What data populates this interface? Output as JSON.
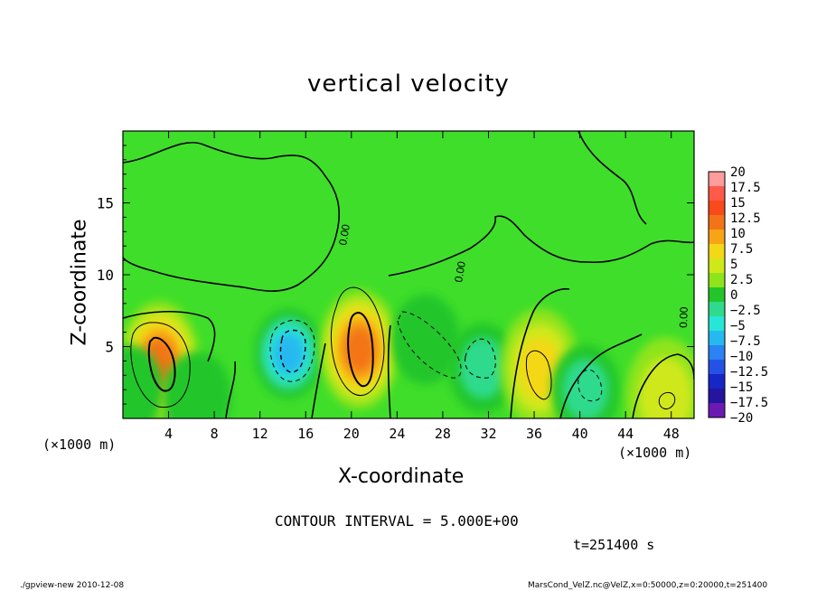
{
  "chart_data": {
    "type": "heatmap",
    "title": "vertical velocity",
    "xlabel": "X-coordinate",
    "ylabel": "Z-coordinate",
    "x_unit_left": "(×1000 m)",
    "x_unit_right": "(×1000 m)",
    "xlim": [
      0,
      50
    ],
    "ylim": [
      0,
      20
    ],
    "xticks": [
      4,
      8,
      12,
      16,
      20,
      24,
      28,
      32,
      36,
      40,
      44,
      48
    ],
    "yticks": [
      5,
      10,
      15
    ],
    "colorbar": {
      "levels": [
        20,
        17.5,
        15,
        12.5,
        10,
        7.5,
        5,
        2.5,
        0,
        -2.5,
        -5,
        -7.5,
        -10,
        -12.5,
        -15,
        -17.5,
        -20
      ],
      "labels": [
        "20",
        "17.5",
        "15",
        "12.5",
        "10",
        "7.5",
        "5",
        "2.5",
        "0",
        "−2.5",
        "−5",
        "−7.5",
        "−10",
        "−12.5",
        "−15",
        "−17.5",
        "−20"
      ],
      "colors": [
        "#ff9c9c",
        "#ff5a4a",
        "#f84a1a",
        "#f37418",
        "#f7a416",
        "#f4d817",
        "#cfe81a",
        "#8ee41a",
        "#22c62b",
        "#2fda8c",
        "#27e6d6",
        "#26b9f0",
        "#2a83f2",
        "#2552e6",
        "#1726c6",
        "#24149e",
        "#6a1ab2"
      ],
      "background_color": "#3fde2a"
    },
    "contour_labels": [
      "0.00",
      "0.00",
      "0.00"
    ],
    "cells": [
      {
        "x": 3.2,
        "z": 4.0,
        "value": 12.5
      },
      {
        "x": 14.5,
        "z": 4.5,
        "value": -10
      },
      {
        "x": 20.7,
        "z": 4.8,
        "value": 12.5
      },
      {
        "x": 31.5,
        "z": 3.5,
        "value": -5
      },
      {
        "x": 36.5,
        "z": 3.5,
        "value": 7.5
      },
      {
        "x": 40.5,
        "z": 2.0,
        "value": -5
      },
      {
        "x": 47.5,
        "z": 1.5,
        "value": 5
      },
      {
        "x": 26.5,
        "z": 5.5,
        "value": -2.5
      },
      {
        "x": 6.5,
        "z": 1.5,
        "value": -2.5
      },
      {
        "x": 0.5,
        "z": 2.0,
        "value": -2.5
      }
    ],
    "contour_interval_text": "CONTOUR INTERVAL = 5.000E+00",
    "time_text": "t=251400 s"
  },
  "footer": {
    "left": "./gpview-new  2010-12-08",
    "right": "MarsCond_VelZ.nc@VelZ,x=0:50000,z=0:20000,t=251400"
  }
}
